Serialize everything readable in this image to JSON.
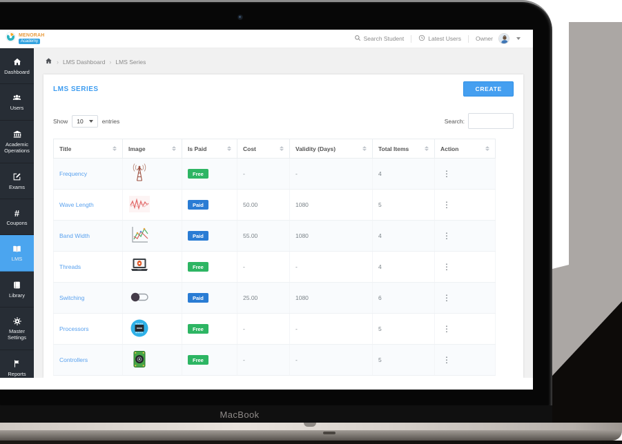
{
  "device": {
    "brand_label": "MacBook"
  },
  "topbar": {
    "logo_title": "MENORAH",
    "logo_subtitle": "Academy",
    "search_label": "Search Student",
    "latest_users_label": "Latest Users",
    "owner_label": "Owner"
  },
  "breadcrumb": {
    "items": [
      "LMS Dashboard",
      "LMS Series"
    ]
  },
  "sidebar": {
    "items": [
      {
        "label": "Dashboard",
        "icon": "home-icon",
        "active": false
      },
      {
        "label": "Users",
        "icon": "users-icon",
        "active": false
      },
      {
        "label": "Academic Operations",
        "icon": "bank-icon",
        "active": false
      },
      {
        "label": "Exams",
        "icon": "exam-icon",
        "active": false
      },
      {
        "label": "Coupons",
        "icon": "hash-icon",
        "active": false
      },
      {
        "label": "LMS",
        "icon": "open-book-icon",
        "active": true
      },
      {
        "label": "Library",
        "icon": "library-book-icon",
        "active": false
      },
      {
        "label": "Master Settings",
        "icon": "gear-icon",
        "active": false
      },
      {
        "label": "Reports",
        "icon": "flag-icon",
        "active": false
      }
    ]
  },
  "page": {
    "title": "LMS SERIES",
    "create_button": "CREATE",
    "show_label": "Show",
    "page_size": "10",
    "entries_label": "entries",
    "search_label": "Search:"
  },
  "table": {
    "columns": [
      "Title",
      "Image",
      "Is Paid",
      "Cost",
      "Validity (Days)",
      "Total Items",
      "Action"
    ],
    "rows": [
      {
        "title": "Frequency",
        "image": "radio-tower-image",
        "paid": "Free",
        "cost": "-",
        "validity": "-",
        "total": "4"
      },
      {
        "title": "Wave Length",
        "image": "waveform-image",
        "paid": "Paid",
        "cost": "50.00",
        "validity": "1080",
        "total": "5"
      },
      {
        "title": "Band Width",
        "image": "line-chart-image",
        "paid": "Paid",
        "cost": "55.00",
        "validity": "1080",
        "total": "4"
      },
      {
        "title": "Threads",
        "image": "laptop-image",
        "paid": "Free",
        "cost": "-",
        "validity": "-",
        "total": "4"
      },
      {
        "title": "Switching",
        "image": "toggle-switch-image",
        "paid": "Paid",
        "cost": "25.00",
        "validity": "1080",
        "total": "6"
      },
      {
        "title": "Processors",
        "image": "processor-chip-image",
        "paid": "Free",
        "cost": "-",
        "validity": "-",
        "total": "5"
      },
      {
        "title": "Controllers",
        "image": "circuit-board-image",
        "paid": "Free",
        "cost": "-",
        "validity": "-",
        "total": "5"
      }
    ]
  },
  "colors": {
    "accent_blue": "#459ff0",
    "active_item_blue": "#4ba5ef",
    "free_green": "#2db563",
    "paid_blue": "#2a7cd4",
    "sidebar_dark": "#272d35",
    "link_blue": "#59a1ee"
  }
}
